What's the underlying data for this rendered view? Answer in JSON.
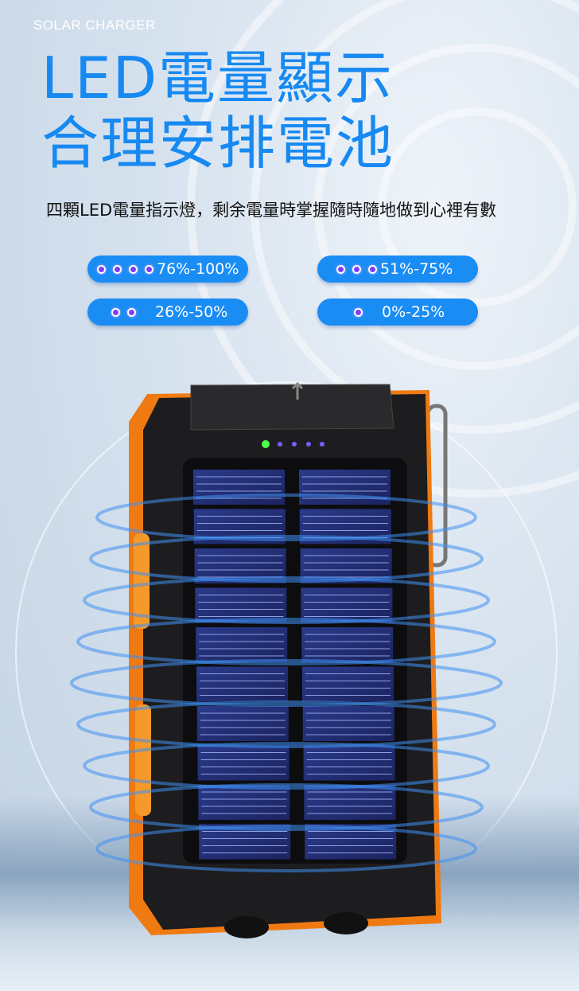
{
  "header": {
    "eyebrow": "SOLAR CHARGER",
    "title_line1": "LED電量顯示",
    "title_line2": "合理安排電池",
    "subtitle": "四顆LED電量指示燈，剩余電量時掌握隨時隨地做到心裡有數"
  },
  "indicators": [
    {
      "dots": 4,
      "label": "76%-100%"
    },
    {
      "dots": 3,
      "label": "51%-75%"
    },
    {
      "dots": 2,
      "label": "26%-50%"
    },
    {
      "dots": 1,
      "label": "0%-25%"
    }
  ],
  "colors": {
    "accent": "#1789f2",
    "pill": "#1a8df5",
    "led": "#7b3cff",
    "orange": "#f07a12"
  }
}
